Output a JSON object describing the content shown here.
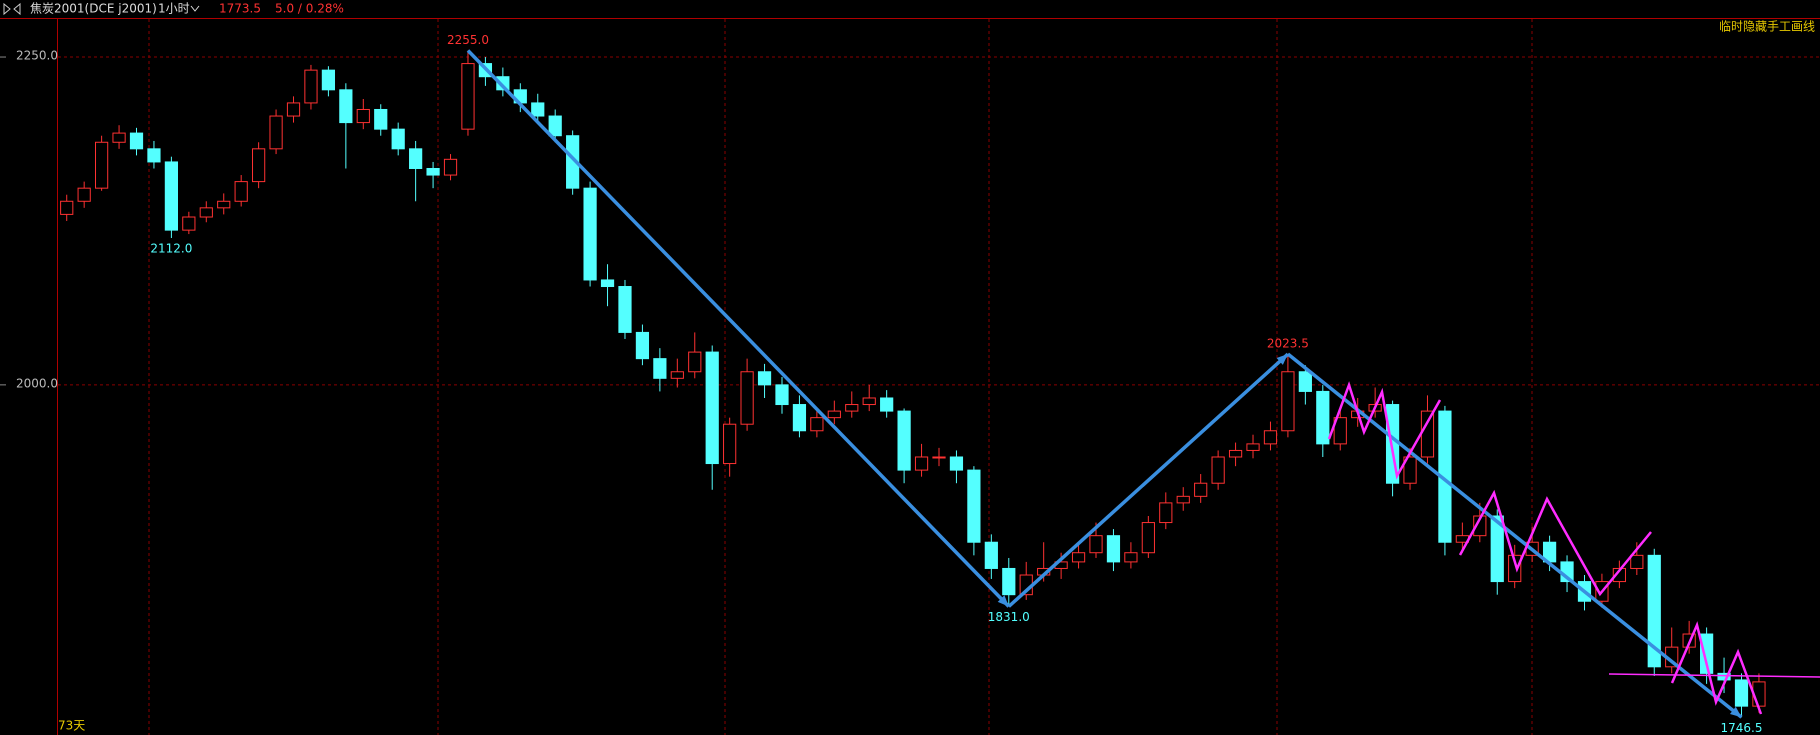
{
  "header": {
    "symbol": "焦炭2001(DCE j2001)",
    "period": "1小时",
    "price": "1773.5",
    "change": "5.0 / 0.28%",
    "hide_drawings": "临时隐藏手工画线",
    "days": "73天"
  },
  "chart_data": {
    "type": "candlestick",
    "up_color": "#ff3232",
    "down_color": "#54ffff",
    "ylim": [
      1733,
      2279
    ],
    "yticks": [
      {
        "value": 2250,
        "label": "2250.0"
      },
      {
        "value": 2000,
        "label": "2000.0"
      }
    ],
    "grid": true,
    "ohlc": [
      [
        2130,
        2145,
        2125,
        2140
      ],
      [
        2140,
        2155,
        2135,
        2150
      ],
      [
        2150,
        2190,
        2148,
        2185
      ],
      [
        2185,
        2198,
        2180,
        2192
      ],
      [
        2192,
        2196,
        2175,
        2180
      ],
      [
        2180,
        2186,
        2165,
        2170
      ],
      [
        2170,
        2174,
        2112,
        2118
      ],
      [
        2118,
        2132,
        2115,
        2128
      ],
      [
        2128,
        2140,
        2124,
        2135
      ],
      [
        2135,
        2146,
        2130,
        2140
      ],
      [
        2140,
        2160,
        2136,
        2155
      ],
      [
        2155,
        2185,
        2150,
        2180
      ],
      [
        2180,
        2210,
        2176,
        2205
      ],
      [
        2205,
        2220,
        2200,
        2215
      ],
      [
        2215,
        2244,
        2210,
        2240
      ],
      [
        2240,
        2243,
        2220,
        2225
      ],
      [
        2225,
        2230,
        2165,
        2200
      ],
      [
        2200,
        2218,
        2195,
        2210
      ],
      [
        2210,
        2214,
        2190,
        2195
      ],
      [
        2195,
        2200,
        2175,
        2180
      ],
      [
        2180,
        2186,
        2140,
        2165
      ],
      [
        2165,
        2170,
        2150,
        2160
      ],
      [
        2160,
        2176,
        2156,
        2172
      ],
      [
        2195,
        2255,
        2190,
        2245
      ],
      [
        2245,
        2250,
        2228,
        2235
      ],
      [
        2235,
        2242,
        2220,
        2225
      ],
      [
        2225,
        2230,
        2208,
        2215
      ],
      [
        2215,
        2222,
        2200,
        2205
      ],
      [
        2205,
        2210,
        2185,
        2190
      ],
      [
        2190,
        2194,
        2145,
        2150
      ],
      [
        2150,
        2155,
        2075,
        2080
      ],
      [
        2080,
        2092,
        2060,
        2075
      ],
      [
        2075,
        2080,
        2035,
        2040
      ],
      [
        2040,
        2046,
        2015,
        2020
      ],
      [
        2020,
        2028,
        1995,
        2005
      ],
      [
        2005,
        2020,
        1998,
        2010
      ],
      [
        2010,
        2040,
        2005,
        2025
      ],
      [
        2025,
        2030,
        1920,
        1940
      ],
      [
        1940,
        1975,
        1930,
        1970
      ],
      [
        1970,
        2020,
        1965,
        2010
      ],
      [
        2010,
        2016,
        1990,
        2000
      ],
      [
        2000,
        2006,
        1978,
        1985
      ],
      [
        1985,
        1992,
        1960,
        1965
      ],
      [
        1965,
        1980,
        1960,
        1975
      ],
      [
        1975,
        1988,
        1970,
        1980
      ],
      [
        1980,
        1995,
        1975,
        1985
      ],
      [
        1985,
        2000,
        1980,
        1990
      ],
      [
        1990,
        1996,
        1975,
        1980
      ],
      [
        1980,
        1982,
        1925,
        1935
      ],
      [
        1935,
        1955,
        1930,
        1945
      ],
      [
        1945,
        1952,
        1938,
        1945
      ],
      [
        1945,
        1950,
        1925,
        1935
      ],
      [
        1935,
        1938,
        1870,
        1880
      ],
      [
        1880,
        1886,
        1852,
        1860
      ],
      [
        1860,
        1868,
        1831,
        1840
      ],
      [
        1840,
        1865,
        1836,
        1855
      ],
      [
        1855,
        1880,
        1850,
        1860
      ],
      [
        1860,
        1872,
        1852,
        1865
      ],
      [
        1865,
        1880,
        1860,
        1872
      ],
      [
        1872,
        1895,
        1868,
        1885
      ],
      [
        1885,
        1890,
        1858,
        1865
      ],
      [
        1865,
        1880,
        1860,
        1872
      ],
      [
        1872,
        1900,
        1868,
        1895
      ],
      [
        1895,
        1918,
        1890,
        1910
      ],
      [
        1910,
        1922,
        1904,
        1915
      ],
      [
        1915,
        1932,
        1910,
        1925
      ],
      [
        1925,
        1950,
        1920,
        1945
      ],
      [
        1945,
        1956,
        1938,
        1950
      ],
      [
        1950,
        1962,
        1944,
        1955
      ],
      [
        1955,
        1972,
        1950,
        1965
      ],
      [
        1965,
        2023.5,
        1960,
        2010
      ],
      [
        2010,
        2015,
        1985,
        1995
      ],
      [
        1995,
        2000,
        1945,
        1955
      ],
      [
        1955,
        1982,
        1950,
        1975
      ],
      [
        1975,
        1990,
        1968,
        1980
      ],
      [
        1980,
        1998,
        1975,
        1985
      ],
      [
        1985,
        1988,
        1915,
        1925
      ],
      [
        1925,
        1952,
        1920,
        1945
      ],
      [
        1945,
        1992,
        1940,
        1980
      ],
      [
        1980,
        1984,
        1870,
        1880
      ],
      [
        1880,
        1895,
        1872,
        1885
      ],
      [
        1885,
        1910,
        1880,
        1900
      ],
      [
        1900,
        1905,
        1840,
        1850
      ],
      [
        1850,
        1878,
        1845,
        1870
      ],
      [
        1870,
        1892,
        1865,
        1880
      ],
      [
        1880,
        1885,
        1858,
        1865
      ],
      [
        1865,
        1870,
        1842,
        1850
      ],
      [
        1850,
        1855,
        1828,
        1835
      ],
      [
        1835,
        1856,
        1830,
        1850
      ],
      [
        1850,
        1866,
        1845,
        1860
      ],
      [
        1860,
        1880,
        1855,
        1870
      ],
      [
        1870,
        1875,
        1778,
        1785
      ],
      [
        1785,
        1815,
        1780,
        1800
      ],
      [
        1800,
        1820,
        1795,
        1810
      ],
      [
        1810,
        1815,
        1772,
        1780
      ],
      [
        1780,
        1792,
        1765,
        1775
      ],
      [
        1775,
        1780,
        1746.5,
        1755
      ],
      [
        1755,
        1780,
        1750,
        1773.5
      ]
    ],
    "annotations": {
      "values": [
        2112,
        2255,
        1831,
        2023.5,
        1746.5
      ],
      "value_labels": [
        "2112.0",
        "2255.0",
        "1831.0",
        "2023.5",
        "1746.5"
      ]
    }
  }
}
